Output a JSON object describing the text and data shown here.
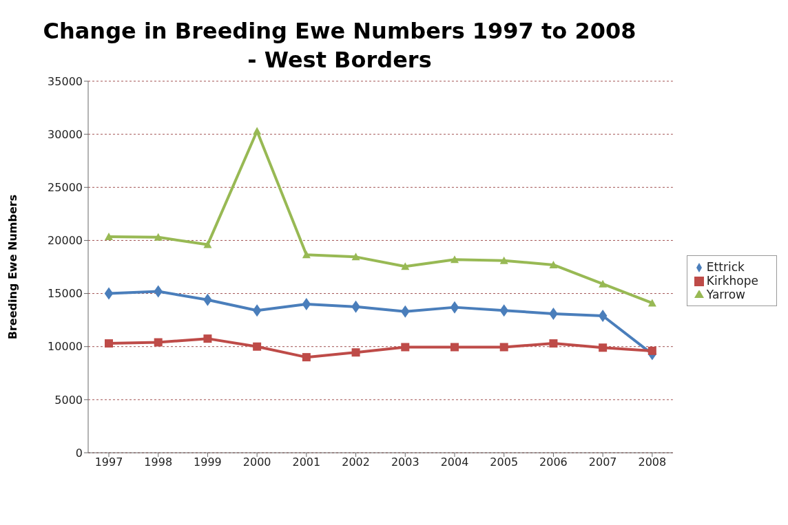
{
  "chart_data": {
    "type": "line",
    "title": "Change in Breeding Ewe Numbers 1997 to 2008\n- West Borders",
    "ylabel": "Breeding Ewe Numbers",
    "categories": [
      "1997",
      "1998",
      "1999",
      "2000",
      "2001",
      "2002",
      "2003",
      "2004",
      "2005",
      "2006",
      "2007",
      "2008"
    ],
    "series": [
      {
        "name": "Ettrick",
        "color": "#4a7ebb",
        "marker": "diamond",
        "values": [
          15000,
          15200,
          14400,
          13400,
          14000,
          13750,
          13300,
          13700,
          13400,
          13100,
          12900,
          9300
        ]
      },
      {
        "name": "Kirkhope",
        "color": "#be4b48",
        "marker": "square",
        "values": [
          10300,
          10400,
          10750,
          10000,
          9000,
          9450,
          9950,
          9950,
          9950,
          10300,
          9900,
          9600
        ]
      },
      {
        "name": "Yarrow",
        "color": "#98b954",
        "marker": "triangle",
        "values": [
          20350,
          20300,
          19600,
          30300,
          18650,
          18450,
          17550,
          18200,
          18100,
          17700,
          15900,
          14100
        ]
      }
    ],
    "ylim": [
      0,
      35000
    ],
    "yticks": [
      0,
      5000,
      10000,
      15000,
      20000,
      25000,
      30000,
      35000
    ],
    "grid": "y",
    "legend": "right",
    "line_style": "solid"
  }
}
